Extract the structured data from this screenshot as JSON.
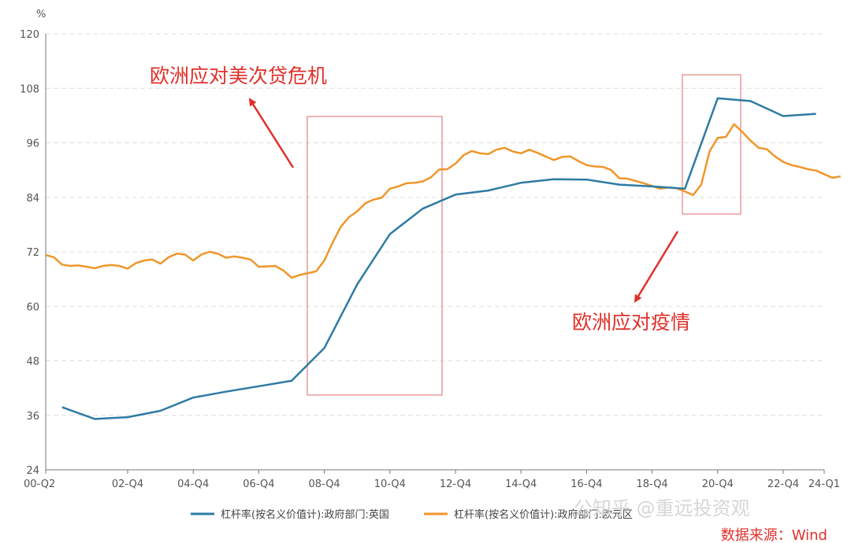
{
  "chart_data": {
    "type": "line",
    "ylabel": "%",
    "ylim": [
      24,
      120
    ],
    "yticks": [
      "120",
      "108",
      "96",
      "84",
      "72",
      "60",
      "48",
      "36",
      "24"
    ],
    "xticks": [
      "00-Q2",
      "02-Q4",
      "04-Q4",
      "06-Q4",
      "08-Q4",
      "10-Q4",
      "12-Q4",
      "14-Q4",
      "16-Q4",
      "18-Q4",
      "20-Q4",
      "22-Q4",
      "24-Q1"
    ],
    "grid": true,
    "legend_position": "bottom",
    "series": [
      {
        "name": "杠杆率(按名义价值计):政府部门:英国",
        "color": "#2e7ba3",
        "points": [
          [
            "00-Q4",
            37.8
          ],
          [
            "01-Q4",
            35.2
          ],
          [
            "02-Q4",
            35.6
          ],
          [
            "03-Q4",
            37.0
          ],
          [
            "04-Q4",
            39.9
          ],
          [
            "05-Q4",
            41.2
          ],
          [
            "06-Q4",
            42.4
          ],
          [
            "07-Q4",
            43.6
          ],
          [
            "08-Q4",
            50.8
          ],
          [
            "09-Q4",
            64.8
          ],
          [
            "10-Q4",
            75.9
          ],
          [
            "11-Q4",
            81.5
          ],
          [
            "12-Q4",
            84.6
          ],
          [
            "13-Q4",
            85.5
          ],
          [
            "14-Q4",
            87.2
          ],
          [
            "15-Q4",
            88.0
          ],
          [
            "16-Q4",
            87.9
          ],
          [
            "17-Q4",
            86.8
          ],
          [
            "18-Q4",
            86.4
          ],
          [
            "19-Q4",
            85.9
          ],
          [
            "20-Q4",
            105.8
          ],
          [
            "21-Q4",
            105.2
          ],
          [
            "22-Q4",
            101.9
          ],
          [
            "23-Q4",
            102.4
          ]
        ]
      },
      {
        "name": "杠杆率(按名义价值计):政府部门:欧元区",
        "color": "#f0962a",
        "values": [
          71.3,
          70.8,
          69.2,
          68.9,
          69.0,
          68.7,
          68.4,
          68.9,
          69.1,
          68.9,
          68.3,
          69.5,
          70.1,
          70.3,
          69.4,
          70.8,
          71.6,
          71.4,
          70.1,
          71.4,
          72.0,
          71.6,
          70.7,
          71.0,
          70.7,
          70.3,
          68.7,
          68.8,
          68.9,
          67.9,
          66.3,
          66.9,
          67.3,
          67.7,
          70.1,
          74.0,
          77.5,
          79.6,
          80.9,
          82.7,
          83.5,
          83.9,
          85.9,
          86.4,
          87.1,
          87.2,
          87.5,
          88.4,
          90.1,
          90.2,
          91.4,
          93.3,
          94.2,
          93.7,
          93.5,
          94.5,
          94.9,
          94.1,
          93.7,
          94.5,
          93.8,
          93.0,
          92.2,
          92.9,
          93.0,
          92.0,
          91.1,
          90.8,
          90.7,
          90.0,
          88.2,
          88.1,
          87.6,
          87.1,
          86.5,
          85.9,
          86.2,
          86.0,
          85.3,
          84.5,
          86.8,
          94.1,
          97.1,
          97.3,
          100.1,
          98.4,
          96.5,
          94.9,
          94.6,
          93.0,
          91.8,
          91.1,
          90.7,
          90.2,
          89.9,
          89.1,
          88.3,
          88.6
        ]
      }
    ],
    "annotations": [
      {
        "text": "欧洲应对美次贷危机"
      },
      {
        "text": "欧洲应对疫情"
      }
    ]
  },
  "watermark": "公知乎 @重远投资观",
  "source": "数据来源：Wind"
}
